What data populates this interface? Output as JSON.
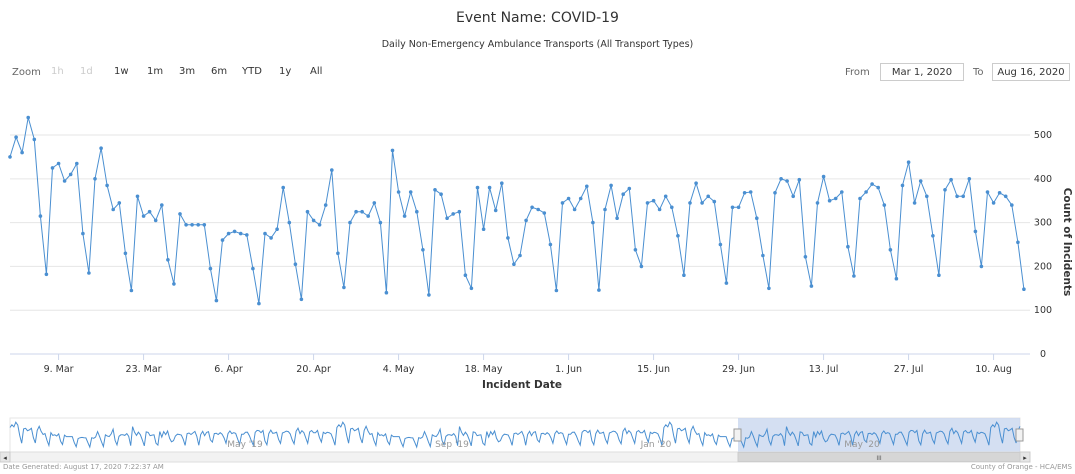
{
  "title": "Event Name: COVID-19",
  "subtitle": "Daily Non-Emergency Ambulance Transports (All Transport Types)",
  "zoom": {
    "label": "Zoom",
    "buttons": [
      {
        "label": "1h",
        "enabled": false
      },
      {
        "label": "1d",
        "enabled": false
      },
      {
        "label": "1w",
        "enabled": true
      },
      {
        "label": "1m",
        "enabled": true
      },
      {
        "label": "3m",
        "enabled": true
      },
      {
        "label": "6m",
        "enabled": true
      },
      {
        "label": "YTD",
        "enabled": true
      },
      {
        "label": "1y",
        "enabled": true
      },
      {
        "label": "All",
        "enabled": true
      }
    ]
  },
  "range": {
    "from_label": "From",
    "from_value": "Mar 1, 2020",
    "to_label": "To",
    "to_value": "Aug 16, 2020"
  },
  "footer": {
    "left": "Date Generated: August 17, 2020 7:22:37 AM",
    "right": "County of Orange - HCA/EMS"
  },
  "navigator": {
    "labels": [
      "May '19",
      "Sep '19",
      "Jan '20",
      "May '20"
    ],
    "scrollbar_grip": "III"
  },
  "colors": {
    "series": "#4a8fd1",
    "grid": "#e6e6e6",
    "navigator_fill": "#c9d7ef"
  },
  "chart_data": {
    "type": "line",
    "xlabel": "Incident Date",
    "ylabel": "Count of Incidents",
    "x_start": "2020-03-01",
    "x_end": "2020-08-16",
    "x_ticks": [
      "9. Mar",
      "23. Mar",
      "6. Apr",
      "20. Apr",
      "4. May",
      "18. May",
      "1. Jun",
      "15. Jun",
      "29. Jun",
      "13. Jul",
      "27. Jul",
      "10. Aug"
    ],
    "y_ticks": [
      0,
      100,
      200,
      300,
      400,
      500
    ],
    "ylim": [
      0,
      580
    ],
    "grid": true,
    "legend": false,
    "series": [
      {
        "values": [
          450,
          495,
          460,
          540,
          490,
          315,
          182,
          425,
          435,
          395,
          410,
          435,
          275,
          185,
          400,
          470,
          385,
          330,
          345,
          230,
          145,
          360,
          315,
          325,
          305,
          340,
          215,
          160,
          320,
          295,
          295,
          295,
          295,
          195,
          122,
          260,
          275,
          280,
          275,
          272,
          195,
          115,
          275,
          265,
          285,
          380,
          300,
          205,
          125,
          325,
          305,
          295,
          340,
          420,
          230,
          152,
          300,
          325,
          325,
          315,
          345,
          300,
          140,
          465,
          370,
          315,
          370,
          325,
          238,
          135,
          375,
          365,
          310,
          320,
          325,
          180,
          150,
          380,
          285,
          380,
          328,
          390,
          265,
          205,
          225,
          305,
          335,
          330,
          322,
          250,
          145,
          345,
          355,
          330,
          355,
          383,
          300,
          146,
          330,
          385,
          310,
          365,
          378,
          238,
          200,
          345,
          350,
          330,
          360,
          335,
          270,
          180,
          345,
          390,
          345,
          360,
          348,
          250,
          162,
          335,
          335,
          368,
          370,
          310,
          225,
          150,
          368,
          400,
          395,
          360,
          398,
          222,
          155,
          345,
          405,
          350,
          355,
          370,
          245,
          178,
          355,
          370,
          388,
          380,
          340,
          238,
          172,
          385,
          438,
          345,
          395,
          360,
          270,
          180,
          375,
          398,
          360,
          360,
          400,
          280,
          200,
          370,
          345,
          368,
          360,
          340,
          255,
          148
        ]
      }
    ]
  }
}
